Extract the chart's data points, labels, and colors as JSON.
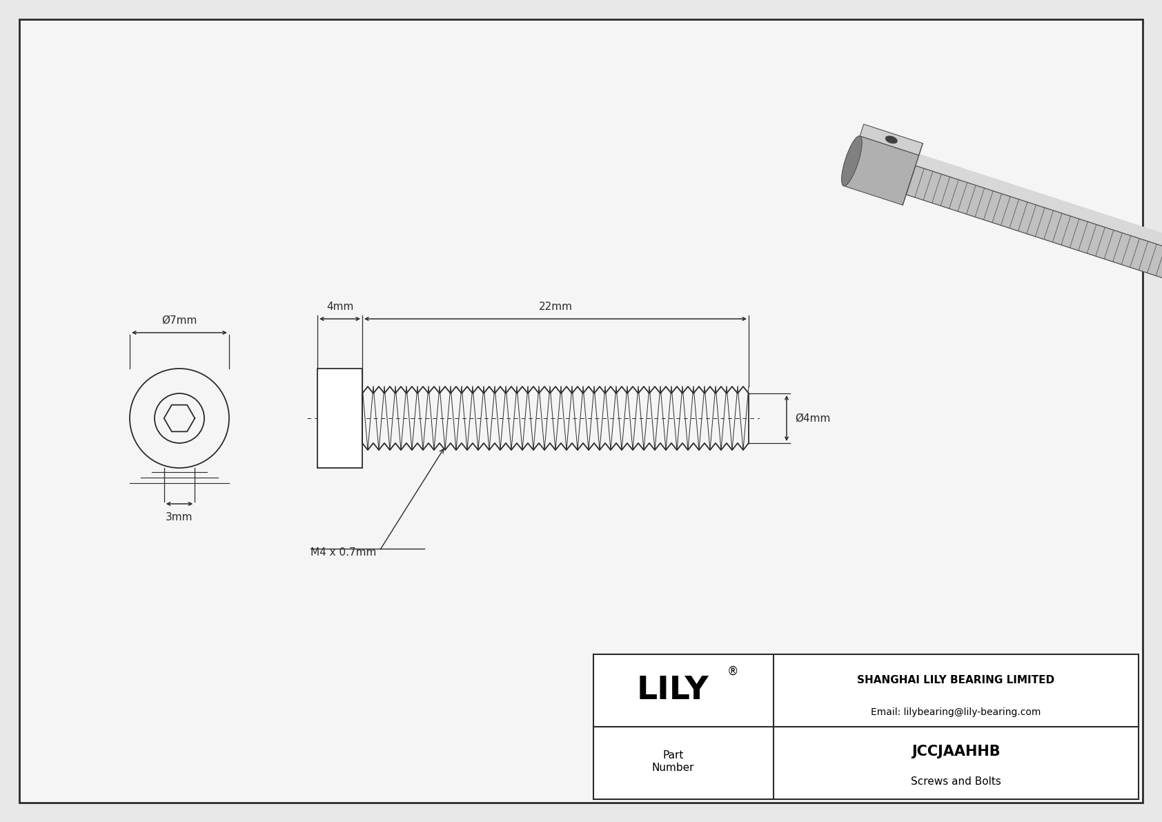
{
  "bg_color": "#e8e8e8",
  "drawing_bg": "#f5f5f5",
  "line_color": "#2a2a2a",
  "title_company": "SHANGHAI LILY BEARING LIMITED",
  "title_email": "Email: lilybearing@lily-bearing.com",
  "part_number": "JCCJAAHHB",
  "part_category": "Screws and Bolts",
  "logo_text": "LILY",
  "dim_head_diameter": "Ø7mm",
  "dim_hex_socket": "3mm",
  "dim_head_length": "4mm",
  "dim_shaft_length": "22mm",
  "dim_shaft_diameter": "Ø4mm",
  "dim_thread": "M4 x 0.7mm",
  "fig_width": 16.84,
  "fig_height": 11.91,
  "dpi": 100
}
